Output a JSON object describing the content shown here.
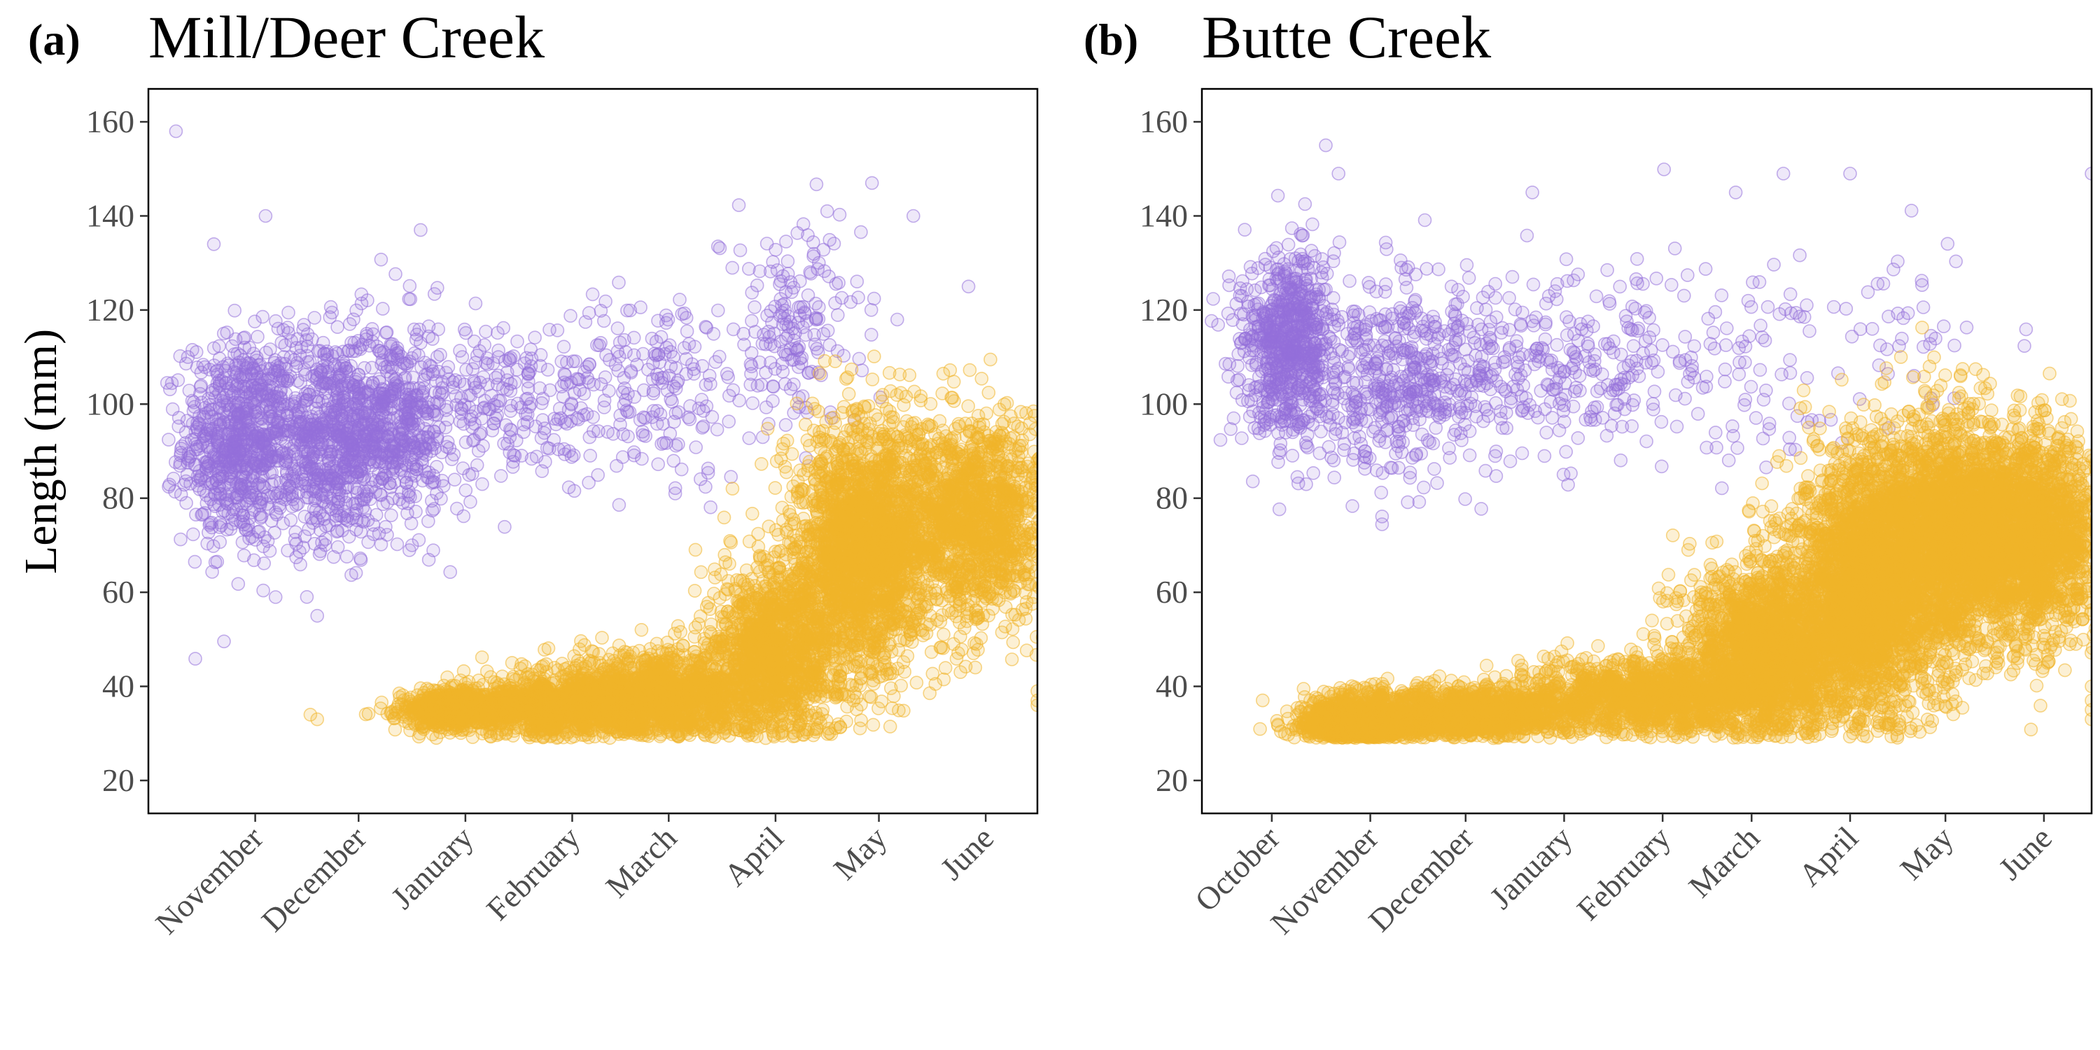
{
  "colors": {
    "early": "#9370DB",
    "late": "#F0B429"
  },
  "y_title": "Length (mm)",
  "chart_data": [
    {
      "type": "scatter",
      "panel": "(a)",
      "title": "Mill/Deer Creek",
      "ylabel": "Length (mm)",
      "xlabel": "",
      "ylim": [
        13,
        167
      ],
      "yticks": [
        20,
        40,
        60,
        80,
        100,
        120,
        140,
        160
      ],
      "xticks": [
        "November",
        "December",
        "January",
        "February",
        "March",
        "April",
        "May",
        "June"
      ],
      "grid": false,
      "series": [
        {
          "color": "#9370DB",
          "clusters": [
            {
              "x": "Nov 10",
              "y": 92,
              "spread_days": 8,
              "spread_y": 11,
              "n": 700
            },
            {
              "x": "Dec 5",
              "y": 93,
              "spread_days": 10,
              "spread_y": 11,
              "n": 700
            },
            {
              "x": "Dec 25",
              "y": 96,
              "spread_days": 8,
              "spread_y": 11,
              "n": 500
            },
            {
              "x": "Jan 25",
              "y": 100,
              "spread_days": 16,
              "spread_y": 9,
              "n": 220
            },
            {
              "x": "Mar 10",
              "y": 104,
              "spread_days": 15,
              "spread_y": 10,
              "n": 200
            },
            {
              "x": "Apr 20",
              "y": 116,
              "spread_days": 10,
              "spread_y": 11,
              "n": 170
            }
          ],
          "outliers": [
            [
              "Oct 23",
              158
            ],
            [
              "Nov 18",
              140
            ],
            [
              "Nov 3",
              134
            ],
            [
              "Apr 30",
              141
            ],
            [
              "May 13",
              147
            ],
            [
              "May 25",
              140
            ],
            [
              "Jun 10",
              125
            ],
            [
              "Dec 3",
              55
            ],
            [
              "Nov 30",
              59
            ],
            [
              "Jan 2",
              137
            ]
          ]
        },
        {
          "color": "#F0B429",
          "clusters": [
            {
              "x": "Jan 10",
              "y": 35,
              "spread_days": 7,
              "spread_y": 2,
              "n": 600
            },
            {
              "x": "Feb 10",
              "y": 36,
              "spread_days": 14,
              "spread_y": 3,
              "n": 1200
            },
            {
              "x": "Mar 15",
              "y": 38,
              "spread_days": 14,
              "spread_y": 5,
              "n": 1200
            },
            {
              "x": "Apr 15",
              "y": 48,
              "spread_days": 9,
              "spread_y": 9,
              "n": 1200
            },
            {
              "x": "May 10",
              "y": 70,
              "spread_days": 10,
              "spread_y": 13,
              "n": 2000
            },
            {
              "x": "Jun 10",
              "y": 75,
              "spread_days": 12,
              "spread_y": 11,
              "n": 1400
            }
          ],
          "outliers": [
            [
              "Dec 1",
              34
            ],
            [
              "Dec 3",
              33
            ],
            [
              "Jun 30",
              37
            ],
            [
              "Jun 30",
              36
            ],
            [
              "Jun 30",
              39
            ],
            [
              "Jun 30",
              88
            ]
          ]
        }
      ]
    },
    {
      "type": "scatter",
      "panel": "(b)",
      "title": "Butte Creek",
      "ylabel": "",
      "xlabel": "",
      "ylim": [
        13,
        167
      ],
      "yticks": [
        20,
        40,
        60,
        80,
        100,
        120,
        140,
        160
      ],
      "xticks": [
        "October",
        "November",
        "December",
        "January",
        "February",
        "March",
        "April",
        "May",
        "June"
      ],
      "grid": false,
      "series": [
        {
          "color": "#9370DB",
          "clusters": [
            {
              "x": "Oct 20",
              "y": 112,
              "spread_days": 8,
              "spread_y": 10,
              "n": 700
            },
            {
              "x": "Nov 25",
              "y": 105,
              "spread_days": 16,
              "spread_y": 11,
              "n": 500
            },
            {
              "x": "Jan 15",
              "y": 108,
              "spread_days": 22,
              "spread_y": 9,
              "n": 260
            },
            {
              "x": "Mar 10",
              "y": 112,
              "spread_days": 20,
              "spread_y": 12,
              "n": 90
            },
            {
              "x": "May 10",
              "y": 115,
              "spread_days": 15,
              "spread_y": 10,
              "n": 40
            }
          ],
          "outliers": [
            [
              "Nov 1",
              155
            ],
            [
              "Nov 5",
              149
            ],
            [
              "Mar 25",
              149
            ],
            [
              "Apr 15",
              149
            ],
            [
              "Jun 30",
              149
            ],
            [
              "Mar 10",
              145
            ],
            [
              "Jan 5",
              145
            ],
            [
              "Oct 3",
              97
            ]
          ]
        },
        {
          "color": "#F0B429",
          "clusters": [
            {
              "x": "Nov 10",
              "y": 32,
              "spread_days": 8,
              "spread_y": 3,
              "n": 1000
            },
            {
              "x": "Dec 15",
              "y": 34,
              "spread_days": 18,
              "spread_y": 3,
              "n": 1200
            },
            {
              "x": "Feb 10",
              "y": 38,
              "spread_days": 20,
              "spread_y": 4,
              "n": 1200
            },
            {
              "x": "Mar 20",
              "y": 48,
              "spread_days": 14,
              "spread_y": 9,
              "n": 1800
            },
            {
              "x": "Apr 20",
              "y": 62,
              "spread_days": 12,
              "spread_y": 14,
              "n": 2500
            },
            {
              "x": "May 20",
              "y": 72,
              "spread_days": 14,
              "spread_y": 12,
              "n": 2500
            },
            {
              "x": "Jun 15",
              "y": 72,
              "spread_days": 10,
              "spread_y": 11,
              "n": 1200
            }
          ],
          "outliers": [
            [
              "Jun 30",
              37
            ],
            [
              "Jun 30",
              35
            ],
            [
              "Jun 30",
              40
            ],
            [
              "Jun 30",
              33
            ],
            [
              "May 1",
              110
            ],
            [
              "May 10",
              108
            ]
          ]
        }
      ]
    }
  ]
}
